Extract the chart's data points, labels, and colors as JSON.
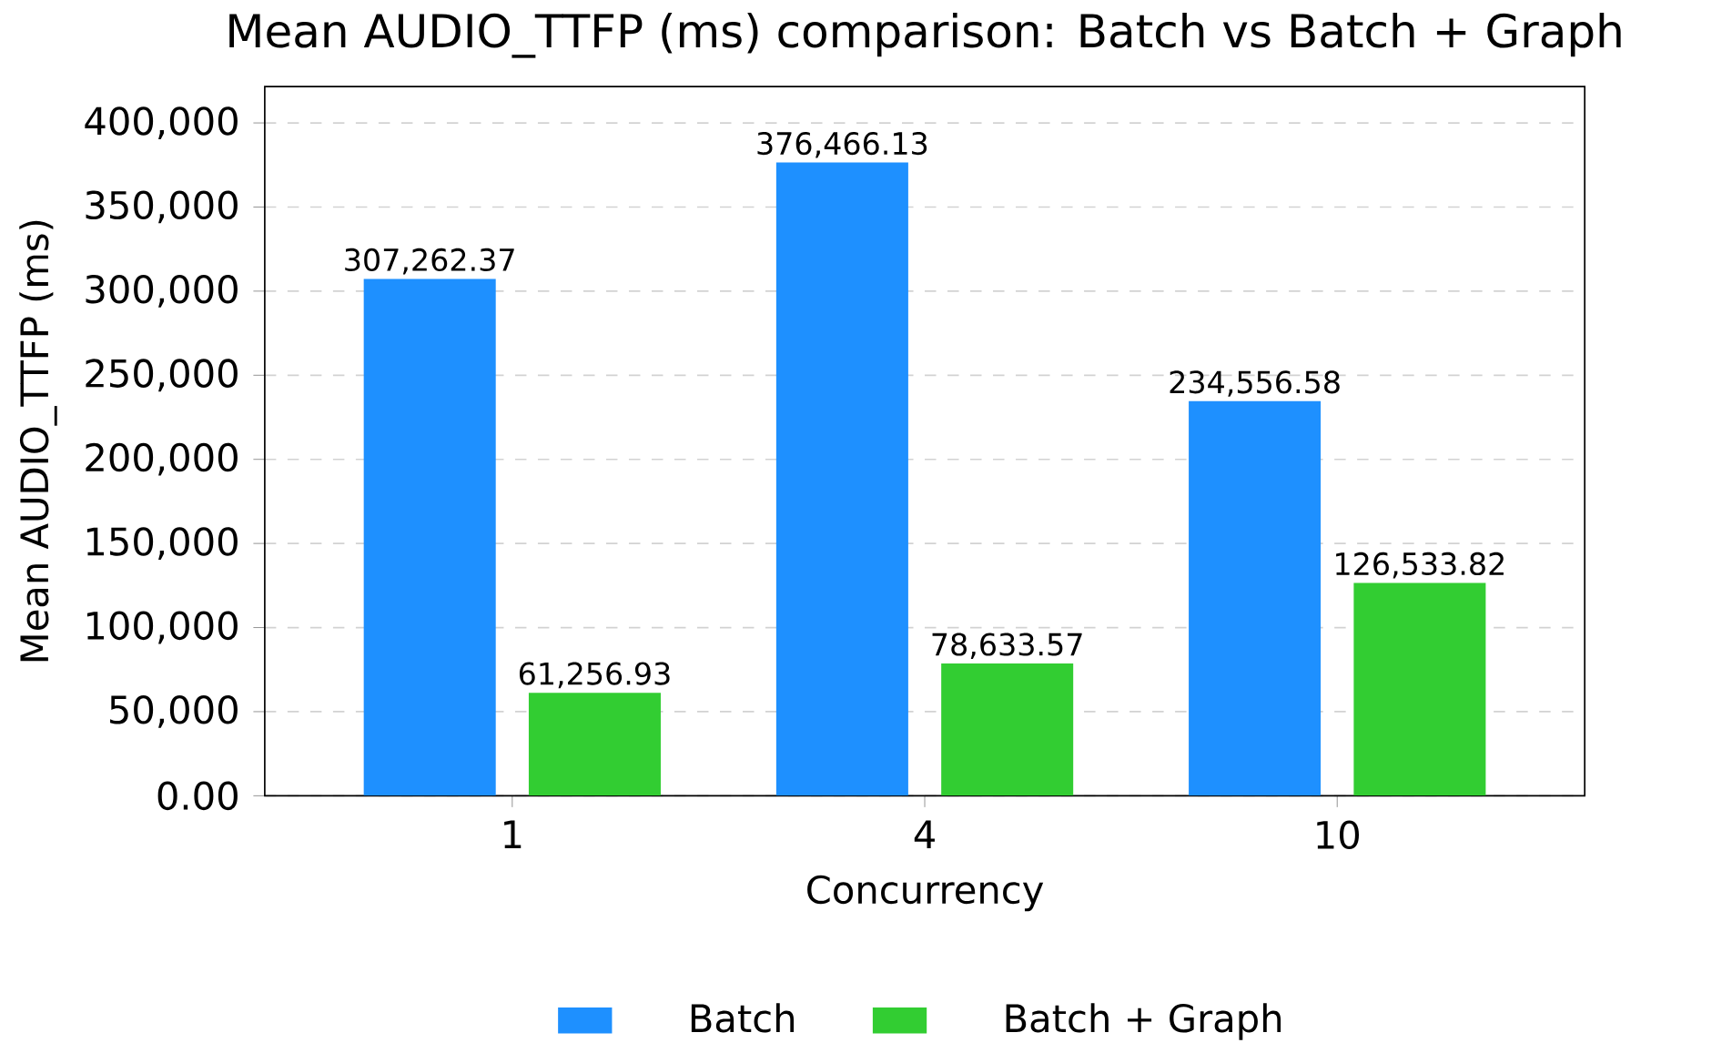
{
  "chart_data": {
    "type": "bar",
    "title": "Mean AUDIO_TTFP (ms) comparison: Batch vs Batch + Graph",
    "xlabel": "Concurrency",
    "ylabel": "Mean AUDIO_TTFP (ms)",
    "categories": [
      "1",
      "4",
      "10"
    ],
    "series": [
      {
        "name": "Batch",
        "color": "#1e90ff",
        "values": [
          307262.37,
          376466.13,
          234556.58
        ],
        "value_labels": [
          "307,262.37",
          "376,466.13",
          "234,556.58"
        ]
      },
      {
        "name": "Batch + Graph",
        "color": "#32cd32",
        "values": [
          61256.93,
          78633.57,
          126533.82
        ],
        "value_labels": [
          "61,256.93",
          "78,633.57",
          "126,533.82"
        ]
      }
    ],
    "ylim": [
      0,
      421642
    ],
    "yticks": [
      {
        "value": 0,
        "label": "0.00"
      },
      {
        "value": 50000,
        "label": "50,000"
      },
      {
        "value": 100000,
        "label": "100,000"
      },
      {
        "value": 150000,
        "label": "150,000"
      },
      {
        "value": 200000,
        "label": "200,000"
      },
      {
        "value": 250000,
        "label": "250,000"
      },
      {
        "value": 300000,
        "label": "300,000"
      },
      {
        "value": 350000,
        "label": "350,000"
      },
      {
        "value": 400000,
        "label": "400,000"
      }
    ],
    "grid": "y",
    "legend": "bottom"
  }
}
